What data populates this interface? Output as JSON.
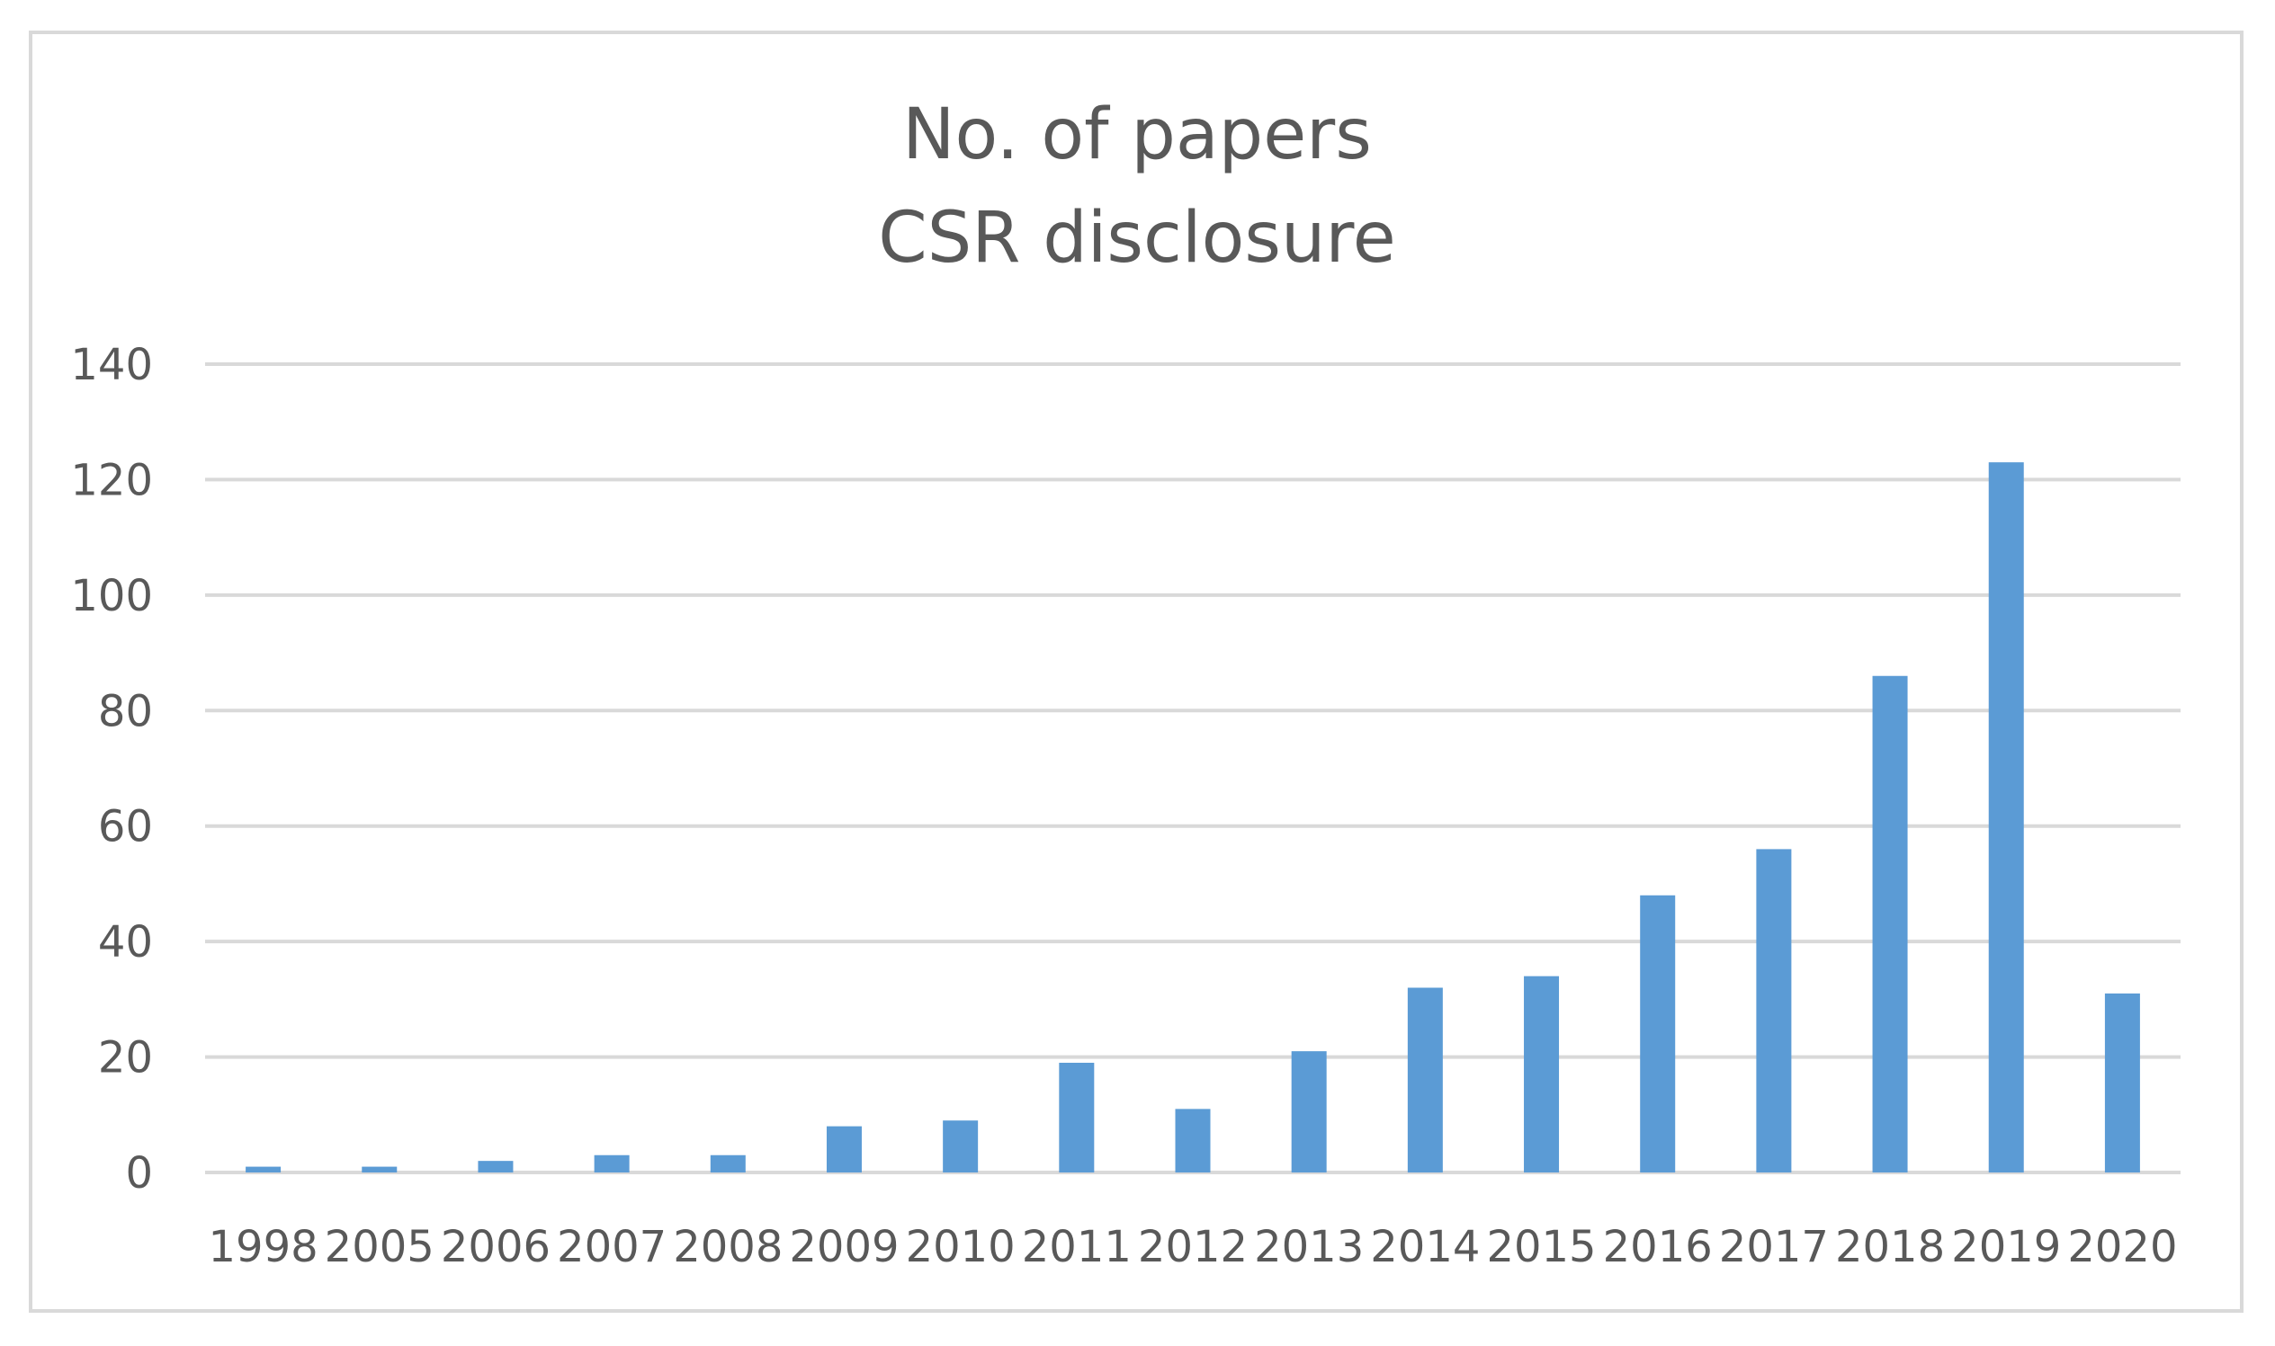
{
  "chart_data": {
    "type": "bar",
    "title_lines": [
      "No. of papers",
      "CSR disclosure"
    ],
    "categories": [
      "1998",
      "2005",
      "2006",
      "2007",
      "2008",
      "2009",
      "2010",
      "2011",
      "2012",
      "2013",
      "2014",
      "2015",
      "2016",
      "2017",
      "2018",
      "2019",
      "2020"
    ],
    "values": [
      1,
      1,
      2,
      3,
      3,
      8,
      9,
      19,
      11,
      21,
      32,
      34,
      48,
      56,
      86,
      123,
      31
    ],
    "y_ticks": [
      "0",
      "20",
      "40",
      "60",
      "80",
      "100",
      "120",
      "140"
    ],
    "ylim": [
      0,
      140
    ],
    "xlabel": "",
    "ylabel": "",
    "grid": "horizontal",
    "legend": "none",
    "bar_color": "#5b9bd5"
  }
}
